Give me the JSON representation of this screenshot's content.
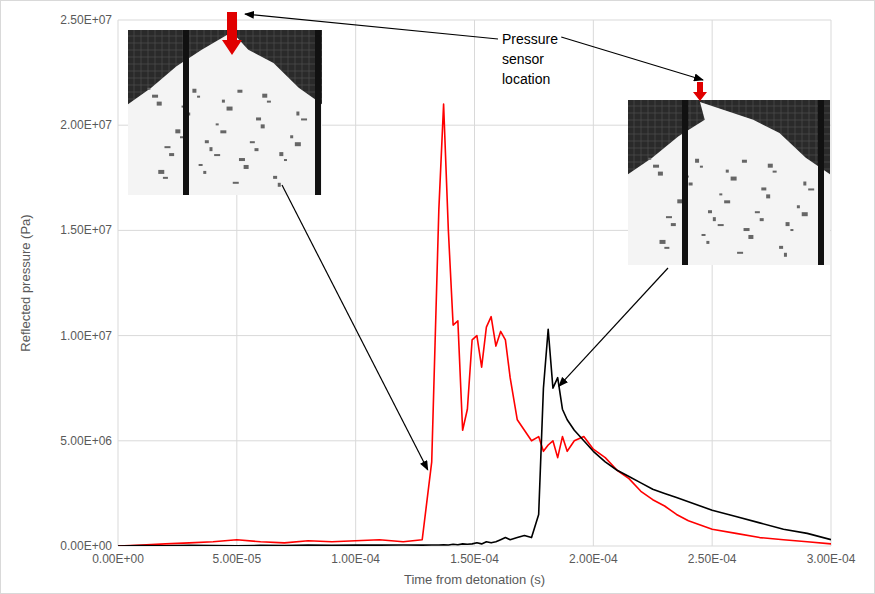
{
  "chart_data": {
    "type": "line",
    "x_label": "Time from detonation (s)",
    "y_label": "Reflected pressure (Pa)",
    "annotations": [
      {
        "text": "Pressure sensor location"
      }
    ],
    "grid": true,
    "xlim": [
      0,
      0.0003
    ],
    "ylim": [
      0,
      25000000
    ],
    "xticks": [
      {
        "value": 0,
        "label": "0.00E+00"
      },
      {
        "value": 5e-05,
        "label": "5.00E-05"
      },
      {
        "value": 0.0001,
        "label": "1.00E-04"
      },
      {
        "value": 0.00015,
        "label": "1.50E-04"
      },
      {
        "value": 0.0002,
        "label": "2.00E-04"
      },
      {
        "value": 0.00025,
        "label": "2.50E-04"
      },
      {
        "value": 0.0003,
        "label": "3.00E-04"
      }
    ],
    "yticks": [
      {
        "value": 0,
        "label": "0.00E+00"
      },
      {
        "value": 5000000,
        "label": "5.00E+06"
      },
      {
        "value": 10000000,
        "label": "1.00E+07"
      },
      {
        "value": 15000000,
        "label": "1.50E+07"
      },
      {
        "value": 20000000,
        "label": "2.00E+07"
      },
      {
        "value": 25000000,
        "label": "2.50E+07"
      }
    ],
    "x": [
      0,
      1e-05,
      2e-05,
      3e-05,
      4e-05,
      5e-05,
      6e-05,
      7e-05,
      8e-05,
      9e-05,
      0.0001,
      0.00011,
      0.00012,
      0.000128,
      0.000132,
      0.000135,
      0.000137,
      0.000139,
      0.000141,
      0.000143,
      0.000145,
      0.000147,
      0.000149,
      0.000151,
      0.000153,
      0.000155,
      0.000157,
      0.000159,
      0.000161,
      0.000163,
      0.000165,
      0.000168,
      0.000171,
      0.000174,
      0.000177,
      0.000179,
      0.000181,
      0.000183,
      0.000185,
      0.000187,
      0.000189,
      0.000192,
      0.000196,
      0.0002,
      0.000205,
      0.00021,
      0.000215,
      0.00022,
      0.000225,
      0.00023,
      0.000235,
      0.00024,
      0.000245,
      0.00025,
      0.00026,
      0.00027,
      0.00028,
      0.00029,
      0.0003
    ],
    "series": [
      {
        "color": "#ff0000",
        "values": [
          0,
          50000,
          100000,
          150000,
          200000,
          300000,
          200000,
          150000,
          250000,
          200000,
          250000,
          300000,
          200000,
          300000,
          4000000,
          16000000,
          21000000,
          15000000,
          10500000,
          10700000,
          5500000,
          6500000,
          9800000,
          10000000,
          8500000,
          10400000,
          10900000,
          9500000,
          10200000,
          9800000,
          8000000,
          6000000,
          5500000,
          5000000,
          5200000,
          4500000,
          4800000,
          5000000,
          4200000,
          5200000,
          4500000,
          5000000,
          5200000,
          4600000,
          4200000,
          3600000,
          3200000,
          2600000,
          2200000,
          1900000,
          1500000,
          1200000,
          1000000,
          800000,
          600000,
          400000,
          300000,
          200000,
          100000
        ]
      },
      {
        "color": "#000000",
        "values": [
          0,
          20000,
          10000,
          30000,
          20000,
          10000,
          30000,
          20000,
          50000,
          30000,
          50000,
          40000,
          50000,
          40000,
          50000,
          50000,
          60000,
          50000,
          80000,
          60000,
          100000,
          80000,
          100000,
          150000,
          100000,
          200000,
          150000,
          200000,
          300000,
          400000,
          300000,
          400000,
          500000,
          400000,
          1500000,
          7500000,
          10300000,
          7500000,
          8000000,
          6500000,
          6000000,
          5500000,
          5000000,
          4500000,
          4000000,
          3600000,
          3300000,
          3000000,
          2700000,
          2500000,
          2300000,
          2100000,
          1900000,
          1700000,
          1400000,
          1100000,
          800000,
          600000,
          300000
        ]
      }
    ]
  }
}
